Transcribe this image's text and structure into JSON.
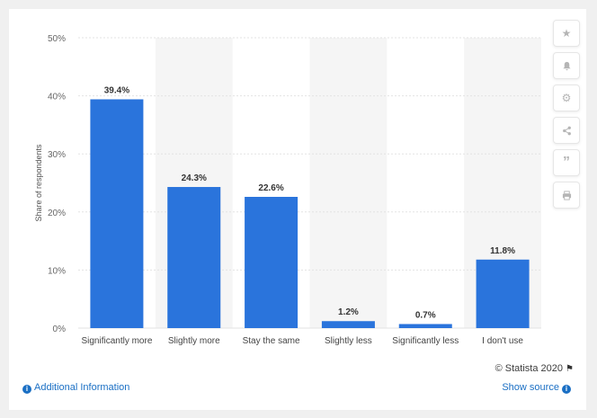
{
  "chart_data": {
    "type": "bar",
    "categories": [
      "Significantly more",
      "Slightly more",
      "Stay the same",
      "Slightly less",
      "Significantly less",
      "I don't use"
    ],
    "values": [
      39.4,
      24.3,
      22.6,
      1.2,
      0.7,
      11.8
    ],
    "value_labels": [
      "39.4%",
      "24.3%",
      "22.6%",
      "1.2%",
      "0.7%",
      "11.8%"
    ],
    "ylabel": "Share of respondents",
    "ylim": [
      0,
      50
    ],
    "yticks": [
      "0%",
      "10%",
      "20%",
      "30%",
      "40%",
      "50%"
    ],
    "grid": true,
    "bar_color": "#2a74dc",
    "band_color": "#f5f5f5"
  },
  "credit": "© Statista 2020",
  "footer": {
    "additional_info": "Additional Information",
    "show_source": "Show source"
  },
  "sidebar": {
    "icons": [
      "star-icon",
      "bell-icon",
      "gear-icon",
      "share-icon",
      "quote-icon",
      "print-icon"
    ]
  }
}
